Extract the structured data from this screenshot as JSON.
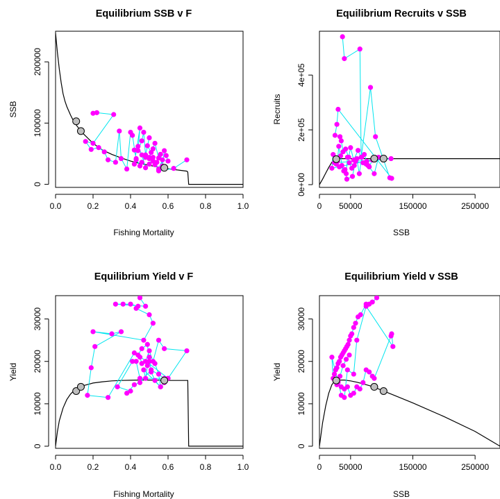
{
  "colors": {
    "observed_points": "#ff00ff",
    "observed_path": "#00e5ee",
    "reference_points": "#bebebe",
    "curve": "#000000"
  },
  "chart_data": [
    {
      "type": "line",
      "title": "Equilibrium SSB v F",
      "xlabel": "Fishing Mortality",
      "ylabel": "SSB",
      "xlim": [
        0,
        1.0
      ],
      "ylim": [
        -5000,
        250000
      ],
      "xticks": [
        0.0,
        0.2,
        0.4,
        0.6,
        0.8,
        1.0
      ],
      "xtick_labels": [
        "0.0",
        "0.2",
        "0.4",
        "0.6",
        "0.8",
        "1.0"
      ],
      "yticks": [
        0,
        100000,
        200000
      ],
      "ytick_labels": [
        "0",
        "100000",
        "200000"
      ],
      "ytick_rotate": true,
      "curve": {
        "x": [
          0.0,
          0.01,
          0.02,
          0.03,
          0.04,
          0.05,
          0.06,
          0.08,
          0.1,
          0.12,
          0.15,
          0.2,
          0.25,
          0.3,
          0.35,
          0.4,
          0.45,
          0.5,
          0.55,
          0.6,
          0.65,
          0.7,
          0.705,
          0.71,
          1.0
        ],
        "y": [
          247000,
          215000,
          188000,
          166000,
          148000,
          136000,
          127000,
          113000,
          101000,
          93000,
          82000,
          67000,
          56000,
          49000,
          43000,
          38000,
          34000,
          31000,
          28000,
          25500,
          23500,
          21500,
          20000,
          0,
          0
        ]
      },
      "observed": {
        "x": [
          0.2,
          0.22,
          0.31,
          0.2,
          0.16,
          0.19,
          0.23,
          0.26,
          0.28,
          0.32,
          0.34,
          0.35,
          0.38,
          0.4,
          0.41,
          0.43,
          0.42,
          0.45,
          0.44,
          0.46,
          0.47,
          0.48,
          0.5,
          0.49,
          0.51,
          0.52,
          0.5,
          0.53,
          0.55,
          0.54,
          0.56,
          0.57,
          0.58,
          0.59,
          0.6,
          0.57,
          0.55,
          0.53,
          0.52,
          0.5,
          0.48,
          0.46,
          0.45,
          0.43,
          0.42,
          0.44,
          0.46,
          0.48,
          0.5,
          0.52,
          0.55,
          0.63,
          0.7
        ],
        "y": [
          116000,
          117000,
          114000,
          67000,
          70000,
          57000,
          60000,
          53000,
          40000,
          36000,
          87000,
          42000,
          25000,
          85000,
          80000,
          40000,
          33000,
          92000,
          55000,
          71000,
          85000,
          48000,
          76000,
          63000,
          52000,
          58000,
          44000,
          67000,
          43000,
          36000,
          49000,
          30000,
          55000,
          47000,
          38000,
          40000,
          25000,
          32000,
          38000,
          42000,
          44000,
          36000,
          30000,
          42000,
          56000,
          62000,
          48000,
          27000,
          33000,
          44000,
          22000,
          26000,
          40000
        ]
      },
      "reference": {
        "x": [
          0.11,
          0.135,
          0.58
        ],
        "y": [
          103000,
          87000,
          27000
        ]
      }
    },
    {
      "type": "line",
      "title": "Equilibrium Recruits v SSB",
      "xlabel": "SSB",
      "ylabel": "Recruits",
      "xlim": [
        0,
        290000
      ],
      "ylim": [
        -10000,
        560000
      ],
      "xticks": [
        0,
        50000,
        150000,
        250000
      ],
      "xtick_labels": [
        "0",
        "50000",
        "150000",
        "250000"
      ],
      "yticks": [
        0,
        200000,
        400000
      ],
      "ytick_labels": [
        "0e+00",
        "2e+05",
        "4e+05"
      ],
      "ytick_rotate": true,
      "curve": {
        "x": [
          0,
          5000,
          10000,
          15000,
          20000,
          25000,
          30000,
          290000
        ],
        "y": [
          0,
          20000,
          42000,
          63000,
          82000,
          93000,
          95000,
          95000
        ]
      },
      "observed": {
        "x": [
          37000,
          40000,
          65000,
          67000,
          82000,
          90000,
          113000,
          116000,
          30000,
          28000,
          25000,
          33000,
          35000,
          38000,
          42000,
          47000,
          50000,
          55000,
          62000,
          70000,
          75000,
          80000,
          85000,
          20000,
          22000,
          26000,
          29000,
          31000,
          34000,
          36000,
          39000,
          43000,
          45000,
          48000,
          52000,
          56000,
          60000,
          64000,
          68000,
          72000,
          76000,
          115000,
          24000,
          27000,
          32000,
          41000,
          44000,
          53000,
          58000,
          78000,
          88000,
          95000,
          103000
        ],
        "y": [
          540000,
          460000,
          495000,
          100000,
          355000,
          175000,
          25000,
          23000,
          275000,
          220000,
          180000,
          175000,
          160000,
          120000,
          130000,
          100000,
          135000,
          90000,
          125000,
          80000,
          75000,
          65000,
          90000,
          60000,
          110000,
          95000,
          85000,
          140000,
          105000,
          70000,
          50000,
          40000,
          100000,
          80000,
          60000,
          70000,
          95000,
          40000,
          100000,
          110000,
          85000,
          95000,
          80000,
          75000,
          65000,
          55000,
          20000,
          30000,
          85000,
          70000,
          40000,
          100000,
          90000
        ]
      },
      "reference": {
        "x": [
          27000,
          88000,
          103000
        ],
        "y": [
          93000,
          95000,
          95000
        ]
      }
    },
    {
      "type": "line",
      "title": "Equilibrium Yield v F",
      "xlabel": "Fishing Mortality",
      "ylabel": "Yield",
      "xlim": [
        0,
        1.0
      ],
      "ylim": [
        -500,
        35500
      ],
      "xticks": [
        0.0,
        0.2,
        0.4,
        0.6,
        0.8,
        1.0
      ],
      "xtick_labels": [
        "0.0",
        "0.2",
        "0.4",
        "0.6",
        "0.8",
        "1.0"
      ],
      "yticks": [
        0,
        10000,
        20000,
        30000
      ],
      "ytick_labels": [
        "0",
        "10000",
        "20000",
        "30000"
      ],
      "ytick_rotate": true,
      "curve": {
        "x": [
          0.0,
          0.01,
          0.02,
          0.04,
          0.06,
          0.08,
          0.1,
          0.12,
          0.15,
          0.2,
          0.25,
          0.3,
          0.35,
          0.4,
          0.45,
          0.5,
          0.55,
          0.6,
          0.65,
          0.7,
          0.705,
          0.71,
          1.0
        ],
        "y": [
          0,
          3500,
          6000,
          9000,
          11000,
          12300,
          13200,
          13800,
          14300,
          14900,
          15200,
          15400,
          15500,
          15550,
          15600,
          15600,
          15600,
          15500,
          15500,
          15500,
          15500,
          0,
          0
        ]
      },
      "observed": {
        "x": [
          0.45,
          0.48,
          0.32,
          0.36,
          0.4,
          0.44,
          0.43,
          0.5,
          0.52,
          0.47,
          0.2,
          0.3,
          0.35,
          0.21,
          0.19,
          0.17,
          0.28,
          0.42,
          0.45,
          0.46,
          0.48,
          0.5,
          0.52,
          0.55,
          0.58,
          0.7,
          0.6,
          0.44,
          0.46,
          0.49,
          0.5,
          0.53,
          0.55,
          0.56,
          0.47,
          0.48,
          0.49,
          0.5,
          0.51,
          0.53,
          0.56,
          0.58,
          0.6,
          0.45,
          0.43,
          0.41,
          0.33,
          0.4,
          0.38,
          0.42,
          0.45,
          0.51,
          0.58
        ],
        "y": [
          35000,
          33000,
          33500,
          33500,
          33500,
          33000,
          32500,
          31000,
          29000,
          25000,
          27000,
          26500,
          27000,
          23500,
          18500,
          12000,
          11500,
          22000,
          21000,
          19500,
          20000,
          22500,
          20000,
          25000,
          23000,
          22500,
          16000,
          21500,
          23000,
          24000,
          20000,
          19500,
          17000,
          14000,
          18000,
          16000,
          19000,
          21000,
          17500,
          15500,
          14000,
          15000,
          16000,
          16000,
          20000,
          20000,
          14000,
          13000,
          12500,
          14500,
          15000,
          18000,
          16000
        ]
      },
      "reference": {
        "x": [
          0.11,
          0.135,
          0.58
        ],
        "y": [
          13000,
          14000,
          15500
        ]
      }
    },
    {
      "type": "line",
      "title": "Equilibrium Yield v SSB",
      "xlabel": "SSB",
      "ylabel": "Yield",
      "xlim": [
        0,
        290000
      ],
      "ylim": [
        -500,
        35500
      ],
      "xticks": [
        0,
        50000,
        150000,
        250000
      ],
      "xtick_labels": [
        "0",
        "50000",
        "150000",
        "250000"
      ],
      "yticks": [
        0,
        10000,
        20000,
        30000
      ],
      "ytick_labels": [
        "0",
        "10000",
        "20000",
        "30000"
      ],
      "ytick_rotate": true,
      "curve": {
        "x": [
          0,
          5000,
          10000,
          15000,
          20000,
          25000,
          30000,
          40000,
          50000,
          60000,
          70000,
          80000,
          90000,
          100000,
          120000,
          150000,
          200000,
          250000,
          290000
        ],
        "y": [
          0,
          5500,
          9500,
          12500,
          14500,
          15400,
          15600,
          15600,
          15400,
          15100,
          14700,
          14300,
          13800,
          13200,
          12000,
          10200,
          7000,
          3500,
          0
        ]
      },
      "observed": {
        "x": [
          92000,
          85000,
          80000,
          75000,
          66000,
          62000,
          58000,
          55000,
          52000,
          50000,
          48000,
          46000,
          44000,
          42000,
          40000,
          38000,
          36000,
          34000,
          32000,
          30000,
          28000,
          26000,
          24000,
          22000,
          20000,
          30000,
          35000,
          40000,
          45000,
          50000,
          55000,
          60000,
          65000,
          70000,
          75000,
          80000,
          85000,
          88000,
          115000,
          116000,
          118000,
          75000,
          60000,
          55000,
          45000,
          40000,
          35000,
          30000,
          28000,
          33000,
          38000,
          43000,
          48000
        ],
        "y": [
          35000,
          34000,
          33500,
          33500,
          31000,
          30500,
          29000,
          28000,
          26500,
          26000,
          25000,
          24000,
          23500,
          23000,
          22500,
          22000,
          21500,
          21000,
          20000,
          19500,
          18500,
          18000,
          17000,
          16000,
          21000,
          15000,
          14000,
          13500,
          14000,
          12000,
          12500,
          14000,
          13500,
          15000,
          18000,
          17500,
          16500,
          16000,
          26000,
          26500,
          23500,
          33000,
          25000,
          17000,
          18000,
          11500,
          12000,
          15500,
          14500,
          16500,
          19000,
          20500,
          21500
        ]
      },
      "reference": {
        "x": [
          27000,
          88000,
          103000
        ],
        "y": [
          15500,
          14000,
          13000
        ]
      }
    }
  ]
}
